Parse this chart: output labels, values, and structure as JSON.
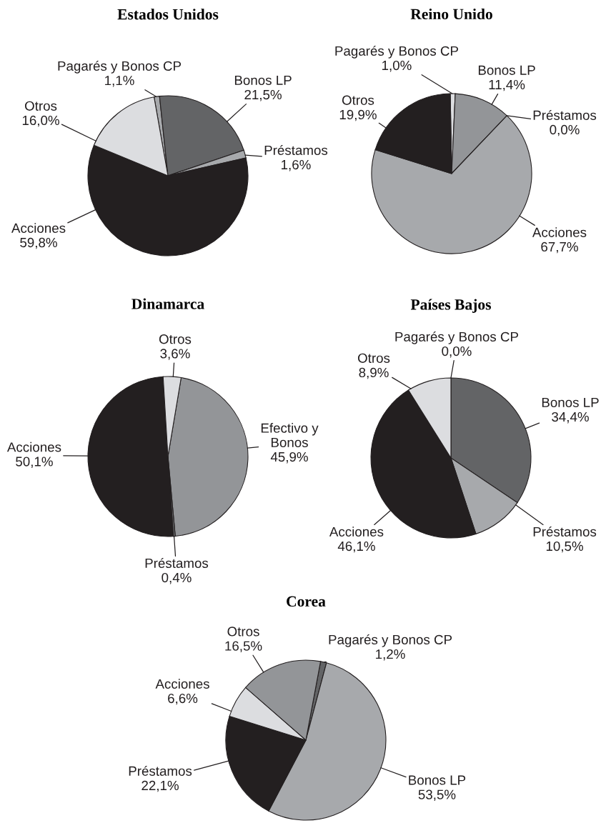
{
  "chart_data": [
    {
      "type": "pie",
      "title": "Estados Unidos",
      "categories": [
        "Pagarés y Bonos CP",
        "Bonos LP",
        "Préstamos",
        "Acciones",
        "Otros"
      ],
      "values": [
        1.1,
        21.5,
        1.6,
        59.8,
        16.0
      ],
      "colors": [
        "#a7a9ac",
        "#636466",
        "#a7a9ac",
        "#231f20",
        "#dcdde0"
      ],
      "value_labels": [
        "1,1%",
        "21,5%",
        "1,6%",
        "59,8%",
        "16,0%"
      ]
    },
    {
      "type": "pie",
      "title": "Reino Unido",
      "categories": [
        "Pagarés y Bonos CP",
        "Bonos LP",
        "Préstamos",
        "Acciones",
        "Otros"
      ],
      "values": [
        1.0,
        11.4,
        0.0,
        67.7,
        19.9
      ],
      "colors": [
        "#dcdde0",
        "#939598",
        "#636466",
        "#a7a9ac",
        "#231f20"
      ],
      "value_labels": [
        "1,0%",
        "11,4%",
        "0,0%",
        "67,7%",
        "19,9%"
      ]
    },
    {
      "type": "pie",
      "title": "Dinamarca",
      "categories": [
        "Efectivo y\nBonos",
        "Préstamos",
        "Acciones",
        "Otros"
      ],
      "values": [
        45.9,
        0.4,
        50.1,
        3.6
      ],
      "colors": [
        "#939598",
        "#636466",
        "#231f20",
        "#dcdde0"
      ],
      "value_labels": [
        "45,9%",
        "0,4%",
        "50,1%",
        "3,6%"
      ]
    },
    {
      "type": "pie",
      "title": "Países Bajos",
      "categories": [
        "Pagarés y Bonos CP",
        "Bonos LP",
        "Préstamos",
        "Acciones",
        "Otros"
      ],
      "values": [
        0.0,
        34.4,
        10.5,
        46.1,
        8.9
      ],
      "colors": [
        "#939598",
        "#636466",
        "#a7a9ac",
        "#231f20",
        "#dcdde0"
      ],
      "value_labels": [
        "0,0%",
        "34,4%",
        "10,5%",
        "46,1%",
        "8,9%"
      ]
    },
    {
      "type": "pie",
      "title": "Corea",
      "categories": [
        "Pagarés y Bonos CP",
        "Bonos LP",
        "Préstamos",
        "Acciones",
        "Otros"
      ],
      "values": [
        1.2,
        53.5,
        22.1,
        6.6,
        16.5
      ],
      "colors": [
        "#636466",
        "#a7a9ac",
        "#231f20",
        "#dcdde0",
        "#939598"
      ],
      "value_labels": [
        "1,2%",
        "53,5%",
        "22,1%",
        "6,6%",
        "16,5%"
      ]
    }
  ]
}
